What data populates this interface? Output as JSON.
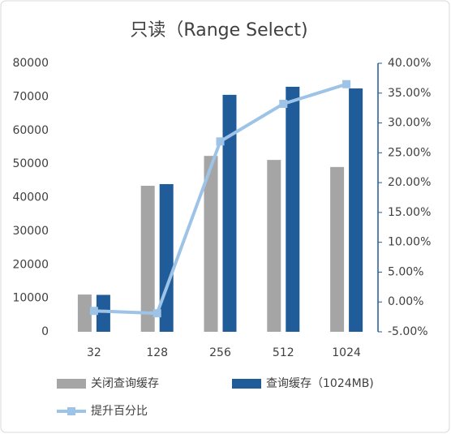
{
  "chart_data": {
    "type": "bar-line",
    "title": "只读（Range Select)",
    "categories": [
      "32",
      "128",
      "256",
      "512",
      "1024"
    ],
    "series": [
      {
        "name": "关闭查询缓存",
        "color": "#a5a5a5",
        "type": "bar",
        "values": [
          11100,
          43500,
          52400,
          51200,
          49100
        ]
      },
      {
        "name": "查询缓存（1024MB)",
        "color": "#1f5c99",
        "type": "bar",
        "values": [
          11000,
          44000,
          70600,
          73000,
          72500
        ]
      },
      {
        "name": "提升百分比",
        "color": "#9dc3e6",
        "type": "line",
        "axis": "y2",
        "values": [
          -1.5,
          -1.9,
          26.9,
          33.2,
          36.5
        ]
      }
    ],
    "ylim": [
      0,
      80000
    ],
    "yticks": [
      0,
      10000,
      20000,
      30000,
      40000,
      50000,
      60000,
      70000,
      80000
    ],
    "y2lim": [
      -5,
      40
    ],
    "y2ticks": [
      {
        "value": -5,
        "label": "-5.00%"
      },
      {
        "value": 0,
        "label": "0.00%"
      },
      {
        "value": 5,
        "label": "5.00%"
      },
      {
        "value": 10,
        "label": "10.00%"
      },
      {
        "value": 15,
        "label": "15.00%"
      },
      {
        "value": 20,
        "label": "20.00%"
      },
      {
        "value": 25,
        "label": "25.00%"
      },
      {
        "value": 30,
        "label": "30.00%"
      },
      {
        "value": 35,
        "label": "35.00%"
      },
      {
        "value": 40,
        "label": "40.00%"
      }
    ],
    "grid": false
  }
}
